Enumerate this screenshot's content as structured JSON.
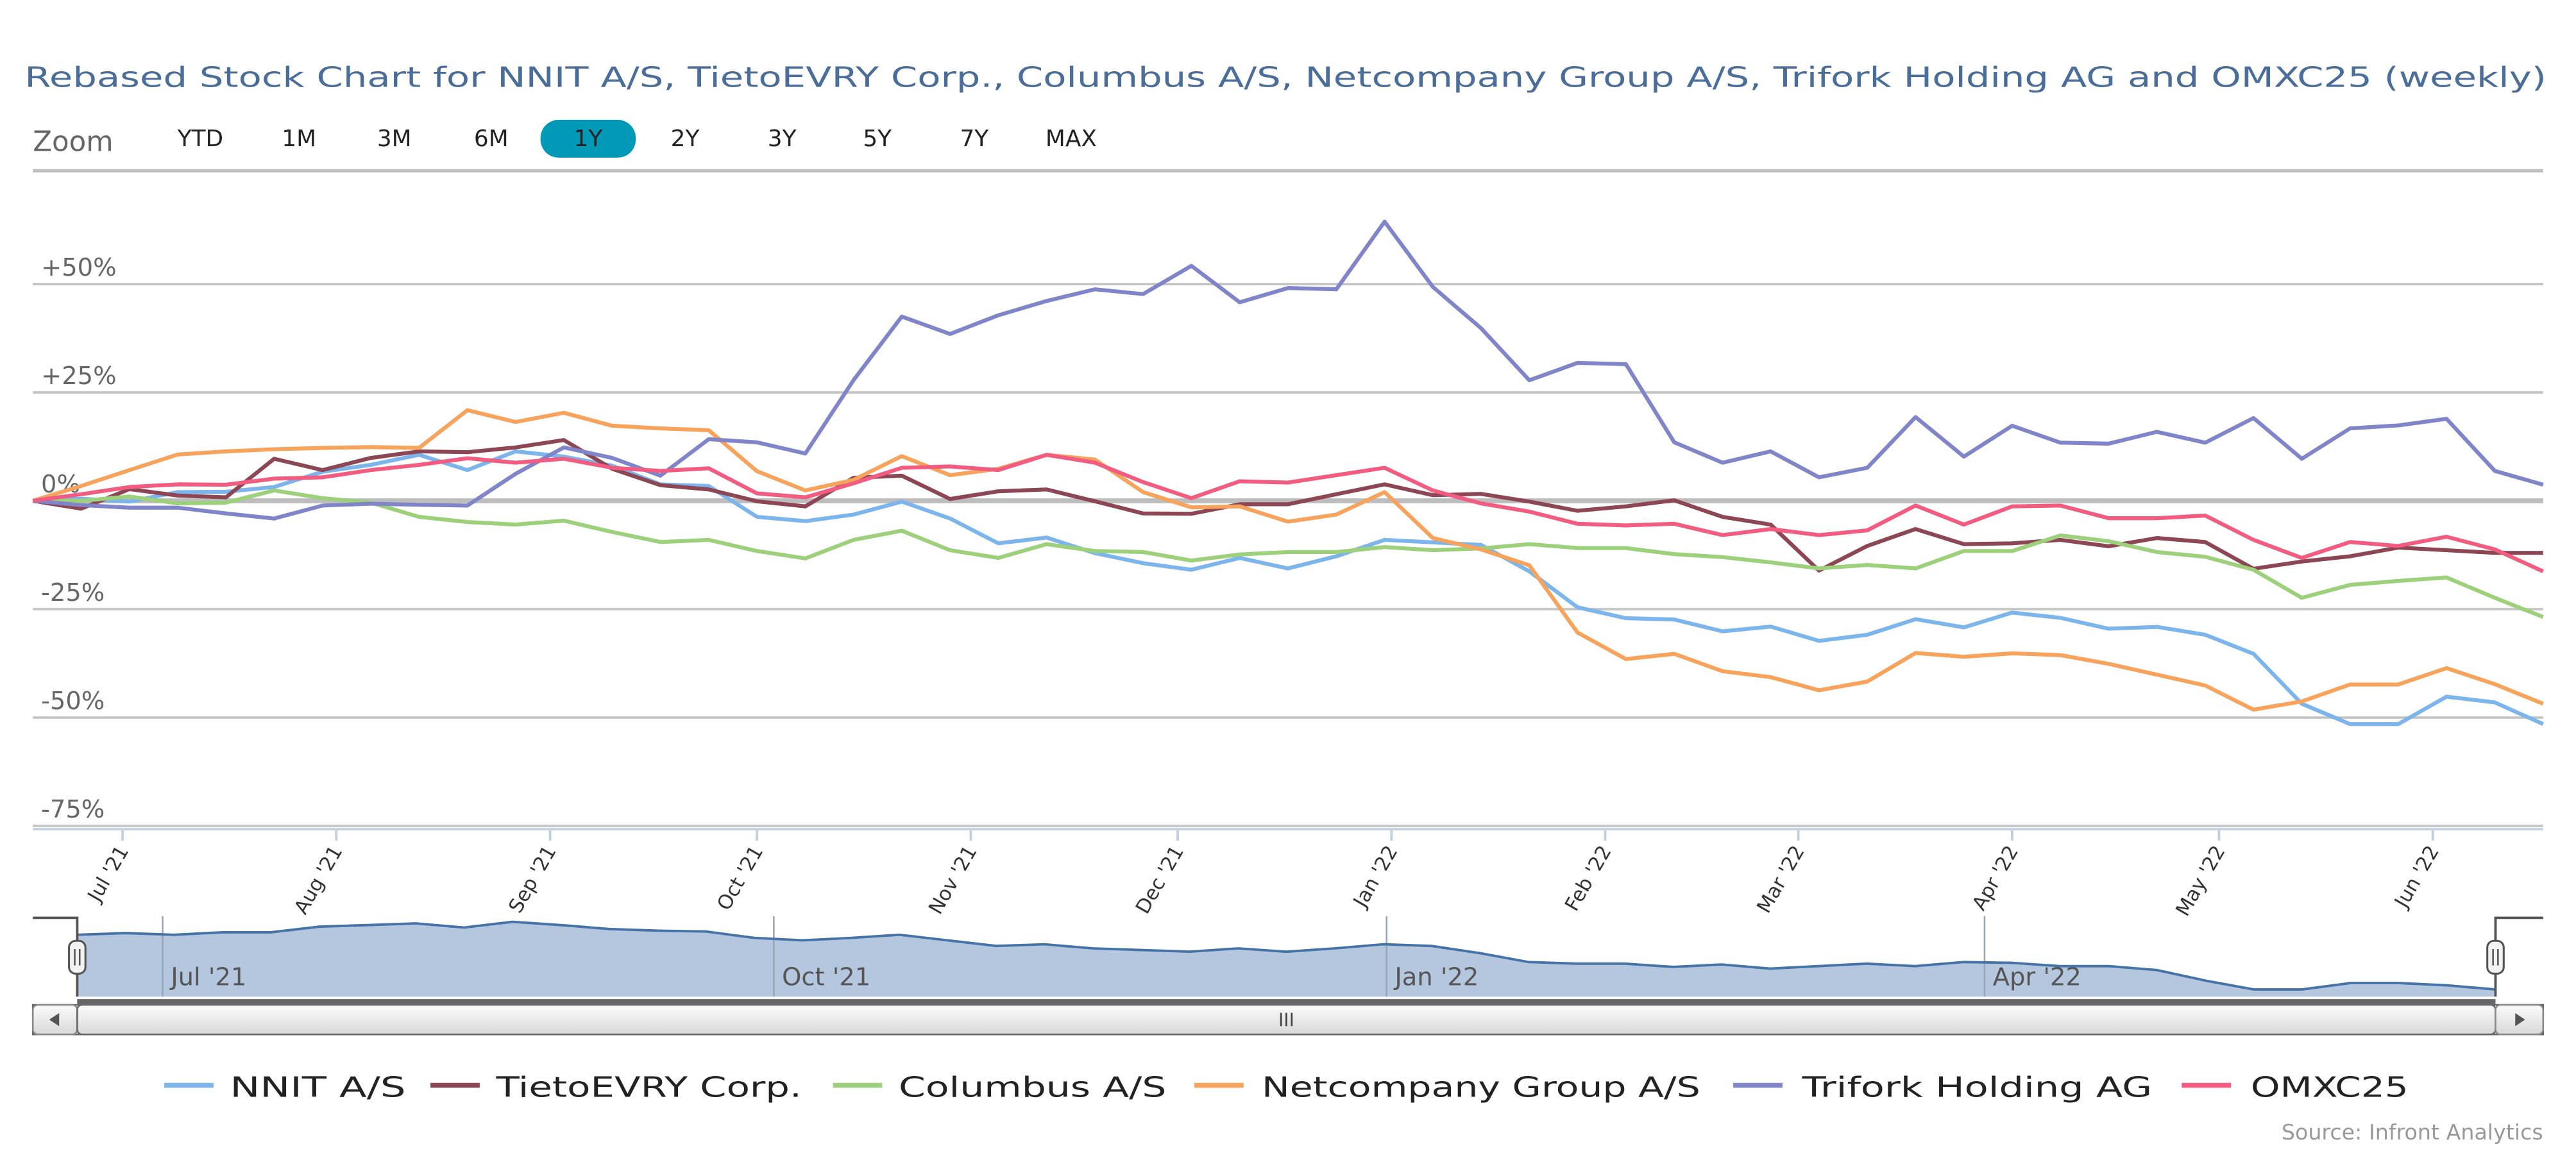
{
  "title": "Rebased Stock Chart for NNIT A/S, TietoEVRY Corp., Columbus A/S, Netcompany Group A/S, Trifork Holding AG and OMXC25 (weekly)",
  "zoom": {
    "label": "Zoom",
    "buttons": [
      "YTD",
      "1M",
      "3M",
      "6M",
      "1Y",
      "2Y",
      "3Y",
      "5Y",
      "7Y",
      "MAX"
    ],
    "selected": "1Y",
    "selected_color": "#0099b8"
  },
  "source": "Source: Infront Analytics",
  "navigator": {
    "labels": [
      "Jul '21",
      "Oct '21",
      "Jan '22",
      "Apr '22"
    ],
    "line_color": "#4572a7",
    "fill_color": "#b5c7de",
    "values": [
      77,
      79,
      77,
      80,
      80,
      87,
      89,
      91,
      86,
      93,
      89,
      84,
      82,
      81,
      73,
      70,
      73,
      77,
      70,
      63,
      65,
      60,
      58,
      56,
      60,
      56,
      60,
      65,
      63,
      54,
      43,
      41,
      41,
      37,
      40,
      35,
      38,
      41,
      38,
      43,
      42,
      38,
      38,
      33,
      20,
      9,
      9,
      17,
      17,
      14,
      9
    ],
    "scrollbar_grip": "III"
  },
  "chart_data": {
    "type": "line",
    "title": "Rebased Stock Chart for NNIT A/S, TietoEVRY Corp., Columbus A/S, Netcompany Group A/S, Trifork Holding AG and OMXC25 (weekly)",
    "xlabel": "",
    "ylabel": "",
    "x_start": "2021-06-18",
    "x_interval_days": 7,
    "ylim": [
      -75,
      60
    ],
    "yticks": [
      50,
      25,
      0,
      -25,
      -50,
      -75
    ],
    "ytick_labels": [
      "+50%",
      "+25%",
      "0%",
      "-25%",
      "-50%",
      "-75%"
    ],
    "xtick_labels": [
      "Jul '21",
      "Aug '21",
      "Sep '21",
      "Oct '21",
      "Nov '21",
      "Dec '21",
      "Jan '22",
      "Feb '22",
      "Mar '22",
      "Apr '22",
      "May '22",
      "Jun '22"
    ],
    "xtick_dates": [
      "2021-07-01",
      "2021-08-01",
      "2021-09-01",
      "2021-10-01",
      "2021-11-01",
      "2021-12-01",
      "2022-01-01",
      "2022-02-01",
      "2022-03-01",
      "2022-04-01",
      "2022-05-01",
      "2022-06-01"
    ],
    "grid": true,
    "legend": "bottom",
    "series": [
      {
        "name": "NNIT A/S",
        "color": "#7cb5ec",
        "values": [
          0,
          0.5,
          -0.2,
          2,
          2.1,
          3.2,
          6.7,
          8.3,
          10.6,
          7.1,
          11.4,
          10.2,
          8.1,
          3.8,
          3.4,
          -3.7,
          -4.7,
          -3.2,
          -0.2,
          -4.1,
          -9.8,
          -8.5,
          -12.1,
          -14.4,
          -15.9,
          -13.2,
          -15.6,
          -12.8,
          -9,
          -9.6,
          -10.2,
          -16.3,
          -24.6,
          -27.1,
          -27.4,
          -30.1,
          -29,
          -32.3,
          -30.9,
          -27.3,
          -29.2,
          -25.8,
          -27,
          -29.5,
          -29.1,
          -30.9,
          -35.3,
          -46.8,
          -51.5,
          -51.5,
          -45.2,
          -46.5,
          -51.5
        ]
      },
      {
        "name": "TietoEVRY Corp.",
        "color": "#8d4653",
        "values": [
          0,
          -1.8,
          2.7,
          1.2,
          0.8,
          9.7,
          7.1,
          9.9,
          11.4,
          11.2,
          12.3,
          14,
          7.4,
          3.6,
          2.6,
          -0.1,
          -1.3,
          5.3,
          5.8,
          0.4,
          2.2,
          2.6,
          -0.1,
          -2.9,
          -3,
          -0.8,
          -0.8,
          1.5,
          3.8,
          1.3,
          1.6,
          -0.2,
          -2.3,
          -1.3,
          0.1,
          -3.7,
          -5.5,
          -16.1,
          -10.4,
          -6.5,
          -10,
          -9.8,
          -9,
          -10.5,
          -8.6,
          -9.5,
          -15.7,
          -14,
          -12.8,
          -10.8,
          -11.4,
          -12,
          -12
        ]
      },
      {
        "name": "Columbus A/S",
        "color": "#9dd07a",
        "values": [
          0,
          0,
          1,
          -0.6,
          -0.4,
          2.4,
          0.6,
          -0.4,
          -3.7,
          -4.9,
          -5.5,
          -4.6,
          -7.2,
          -9.5,
          -9,
          -11.6,
          -13.3,
          -9,
          -6.9,
          -11.4,
          -13.2,
          -10,
          -11.6,
          -11.8,
          -13.8,
          -12.4,
          -11.8,
          -11.8,
          -10.7,
          -11.4,
          -11,
          -10,
          -10.9,
          -10.9,
          -12.3,
          -13,
          -14.2,
          -15.6,
          -14.8,
          -15.6,
          -11.6,
          -11.6,
          -8,
          -9.3,
          -11.8,
          -12.9,
          -15.9,
          -22.4,
          -19.4,
          -18.5,
          -17.7,
          -22.4,
          -26.8
        ]
      },
      {
        "name": "Netcompany Group A/S",
        "color": "#f7a35c",
        "values": [
          0,
          3.4,
          7.1,
          10.7,
          11.4,
          11.9,
          12.2,
          12.4,
          12.2,
          20.9,
          18.2,
          20.3,
          17.3,
          16.7,
          16.3,
          6.8,
          2.4,
          4.8,
          10.3,
          5.9,
          7.4,
          10.6,
          9.5,
          2,
          -1.5,
          -1.3,
          -4.8,
          -3.2,
          2,
          -8.6,
          -11.2,
          -14.9,
          -30.4,
          -36.5,
          -35.3,
          -39.3,
          -40.7,
          -43.7,
          -41.7,
          -35.1,
          -36,
          -35.2,
          -35.6,
          -37.6,
          -40.1,
          -42.6,
          -48.2,
          -46.3,
          -42.4,
          -42.4,
          -38.6,
          -42.3,
          -46.8
        ]
      },
      {
        "name": "Trifork Holding AG",
        "color": "#8085c9",
        "values": [
          0,
          -1,
          -1.6,
          -1.6,
          -2.9,
          -4.1,
          -1.1,
          -0.7,
          -0.9,
          -1.1,
          6.2,
          12.3,
          9.9,
          5.8,
          14.2,
          13.5,
          10.9,
          27.8,
          42.5,
          38.5,
          42.8,
          46.1,
          48.8,
          47.7,
          54.2,
          45.8,
          49.1,
          48.8,
          64.4,
          49.3,
          39.8,
          27.8,
          31.8,
          31.5,
          13.5,
          8.8,
          11.4,
          5.4,
          7.6,
          19.3,
          10.2,
          17.3,
          13.4,
          13.2,
          15.9,
          13.4,
          19.1,
          9.7,
          16.7,
          17.4,
          18.9,
          6.9,
          3.7
        ]
      },
      {
        "name": "OMXC25",
        "color": "#f15c80",
        "values": [
          0,
          1.5,
          3.2,
          3.8,
          3.7,
          5.1,
          5.4,
          7.1,
          8.3,
          9.8,
          8.8,
          9.7,
          7.6,
          6.9,
          7.5,
          1.7,
          0.8,
          4,
          7.6,
          7.9,
          7.1,
          10.6,
          8.8,
          4.3,
          0.6,
          4.5,
          4.2,
          5.9,
          7.6,
          2.4,
          -0.6,
          -2.5,
          -5.3,
          -5.7,
          -5.3,
          -7.9,
          -6.5,
          -7.9,
          -6.8,
          -1.1,
          -5.5,
          -1.3,
          -1.1,
          -4,
          -4,
          -3.4,
          -9,
          -13.2,
          -9.5,
          -10.4,
          -8.3,
          -11.2,
          -16.3
        ]
      }
    ]
  }
}
